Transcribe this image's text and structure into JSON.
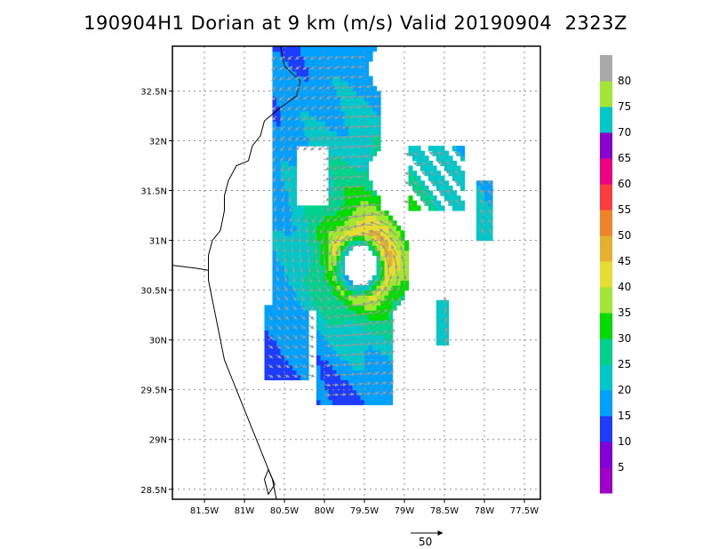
{
  "title": "190904H1 Dorian at 9 km (m/s) Valid 20190904  2323Z",
  "chart_data": {
    "type": "heatmap",
    "title": "190904H1 Dorian at 9 km (m/s) Valid 20190904  2323Z",
    "xlim": [
      -81.9,
      -77.3
    ],
    "ylim": [
      28.4,
      32.95
    ],
    "x_ticks": [
      {
        "value": -81.5,
        "label": "81.5W"
      },
      {
        "value": -81,
        "label": "81W"
      },
      {
        "value": -80.5,
        "label": "80.5W"
      },
      {
        "value": -80,
        "label": "80W"
      },
      {
        "value": -79.5,
        "label": "79.5W"
      },
      {
        "value": -79,
        "label": "79W"
      },
      {
        "value": -78.5,
        "label": "78.5W"
      },
      {
        "value": -78,
        "label": "78W"
      },
      {
        "value": -77.5,
        "label": "77.5W"
      }
    ],
    "y_ticks": [
      {
        "value": 28.5,
        "label": "28.5N"
      },
      {
        "value": 29,
        "label": "29N"
      },
      {
        "value": 29.5,
        "label": "29.5N"
      },
      {
        "value": 30,
        "label": "30N"
      },
      {
        "value": 30.5,
        "label": "30.5N"
      },
      {
        "value": 31,
        "label": "31N"
      },
      {
        "value": 31.5,
        "label": "31.5N"
      },
      {
        "value": 32,
        "label": "32N"
      },
      {
        "value": 32.5,
        "label": "32.5N"
      }
    ],
    "grid": true,
    "storm_center": {
      "lon": -79.55,
      "lat": 30.75
    },
    "eye_radius_deg": 0.2,
    "rmw_deg": 0.35,
    "vector_reference": {
      "label": "50",
      "value": 50
    },
    "colorbar": {
      "levels": [
        5,
        10,
        15,
        20,
        25,
        30,
        35,
        40,
        45,
        50,
        55,
        60,
        65,
        70,
        75,
        80
      ],
      "labels": [
        "5",
        "10",
        "15",
        "20",
        "25",
        "30",
        "35",
        "40",
        "45",
        "50",
        "55",
        "60",
        "65",
        "70",
        "75",
        "80"
      ],
      "colors": [
        "#a000c8",
        "#8200dc",
        "#1e3cff",
        "#00a0ff",
        "#00c8c8",
        "#00d28c",
        "#00dc00",
        "#a0e632",
        "#e6dc32",
        "#e6af2d",
        "#f08228",
        "#fa3c3c",
        "#f00082",
        "#8c00d2",
        "#00c8c8",
        "#a0e632"
      ],
      "over_color": "#a9a9a9"
    }
  }
}
